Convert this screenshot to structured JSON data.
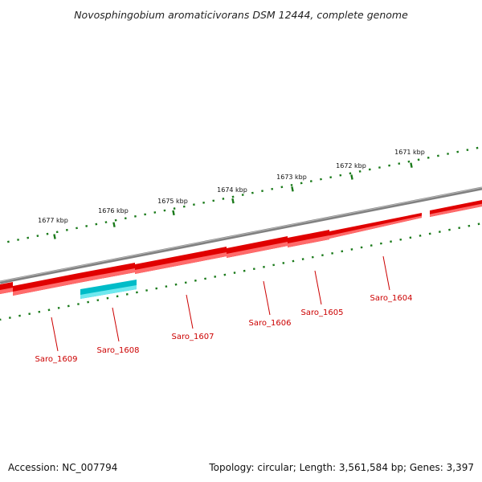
{
  "title": "Novosphingobium aromaticivorans DSM 12444, complete genome",
  "footer": {
    "accession": "Accession: NC_007794",
    "topology": "Topology: circular; Length: 3,561,584 bp; Genes: 3,397"
  },
  "colors": {
    "backbone": "#808080",
    "forward_gene": "#e00000",
    "forward_gene_highlight": "#ff6b6b",
    "reverse_gene": "#00bcc8",
    "reverse_gene_highlight": "#6fe8ee",
    "scale": "#1a7a1a",
    "gene_label": "#cc0000"
  },
  "scale_ticks": [
    {
      "label": "1677 kbp"
    },
    {
      "label": "1676 kbp"
    },
    {
      "label": "1675 kbp"
    },
    {
      "label": "1674 kbp"
    },
    {
      "label": "1673 kbp"
    },
    {
      "label": "1672 kbp"
    },
    {
      "label": "1671 kbp"
    }
  ],
  "genes": [
    {
      "name": "Saro_1609"
    },
    {
      "name": "Saro_1608"
    },
    {
      "name": "Saro_1607"
    },
    {
      "name": "Saro_1606"
    },
    {
      "name": "Saro_1605"
    },
    {
      "name": "Saro_1604"
    }
  ]
}
